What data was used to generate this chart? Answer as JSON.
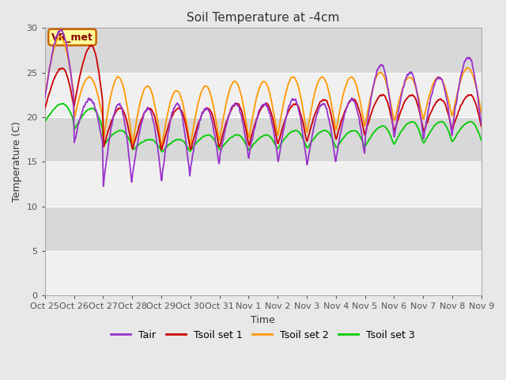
{
  "title": "Soil Temperature at -4cm",
  "xlabel": "Time",
  "ylabel": "Temperature (C)",
  "ylim": [
    0,
    30
  ],
  "yticks": [
    0,
    5,
    10,
    15,
    20,
    25,
    30
  ],
  "xtick_labels": [
    "Oct 25",
    "Oct 26",
    "Oct 27",
    "Oct 28",
    "Oct 29",
    "Oct 30",
    "Oct 31",
    "Nov 1",
    "Nov 2",
    "Nov 3",
    "Nov 4",
    "Nov 5",
    "Nov 6",
    "Nov 7",
    "Nov 8",
    "Nov 9"
  ],
  "colors": {
    "Tair": "#9933cc",
    "Tsoil1": "#cc0000",
    "Tsoil2": "#ff9900",
    "Tsoil3": "#00cc00"
  },
  "fig_bg": "#e8e8e8",
  "plot_bg": "#d8d8d8",
  "white_band_color": "#f0f0f0",
  "annotation_text": "VR_met",
  "annotation_bg": "#ffff99",
  "annotation_border": "#cc6600",
  "legend_labels": [
    "Tair",
    "Tsoil set 1",
    "Tsoil set 2",
    "Tsoil set 3"
  ],
  "n_days": 15,
  "pts_per_day": 96
}
